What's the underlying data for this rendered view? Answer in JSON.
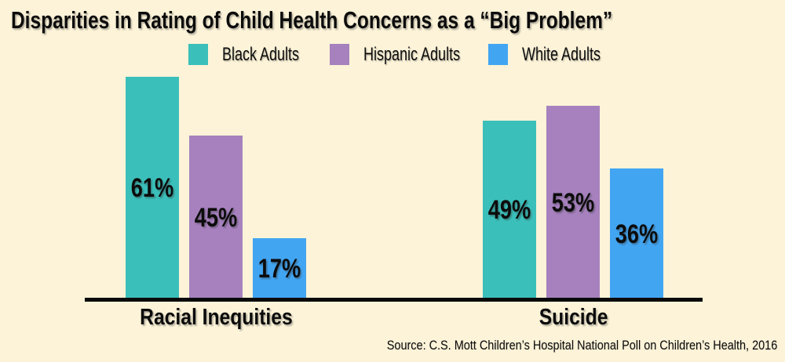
{
  "title": "Disparities in Rating of Child Health Concerns as a “Big Problem”",
  "legend": {
    "items": [
      {
        "label": "Black Adults",
        "color": "#3BBFBA"
      },
      {
        "label": "Hispanic Adults",
        "color": "#A681BE"
      },
      {
        "label": "White Adults",
        "color": "#42A5F2"
      }
    ]
  },
  "source": "Source: C.S. Mott Children’s Hospital National Poll on Children’s Health, 2016",
  "colors": {
    "background": "#FCF3D8",
    "axis": "#0A0A0A",
    "text": "#0C0C0C"
  },
  "chart_data": {
    "type": "bar",
    "title": "Disparities in Rating of Child Health Concerns as a “Big Problem”",
    "categories": [
      "Racial Inequities",
      "Suicide"
    ],
    "series": [
      {
        "name": "Black Adults",
        "color": "#3BBFBA",
        "values": [
          61,
          49
        ]
      },
      {
        "name": "Hispanic Adults",
        "color": "#A681BE",
        "values": [
          45,
          53
        ]
      },
      {
        "name": "White Adults",
        "color": "#42A5F2",
        "values": [
          17,
          36
        ]
      }
    ],
    "value_suffix": "%",
    "value_labels": "inside-bars",
    "legend_position": "top",
    "xlabel": "",
    "ylabel": "",
    "y_axis_visible": false,
    "grid": false
  }
}
